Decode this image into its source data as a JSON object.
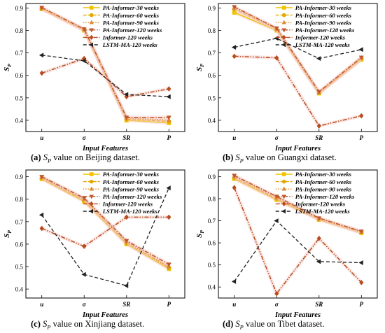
{
  "chart_data": [
    {
      "type": "line",
      "panel_label": "(a)",
      "caption_symbol": "S",
      "caption_subscript": "P",
      "caption_text": " value on Beijing dataset.",
      "xlabel": "Input Features",
      "ylabel_symbol": "S",
      "ylabel_subscript": "P",
      "categories": [
        "u",
        "σ",
        "SR",
        "P"
      ],
      "ylim": [
        0.35,
        0.92
      ],
      "yticks": [
        "0.4",
        "0.5",
        "0.6",
        "0.7",
        "0.8",
        "0.9"
      ],
      "legend_position": "top-right",
      "series": [
        {
          "name": "PA-Informer-30 weeks",
          "values": [
            0.895,
            0.8,
            0.4,
            0.388
          ],
          "color": "#f2c200",
          "marker": "square"
        },
        {
          "name": "PA-Informer-60 weeks",
          "values": [
            0.897,
            0.802,
            0.405,
            0.395
          ],
          "color": "#e0a800",
          "marker": "circle"
        },
        {
          "name": "PA-Informer-90 weeks",
          "values": [
            0.899,
            0.805,
            0.41,
            0.4
          ],
          "color": "#e08a2e",
          "marker": "triangle"
        },
        {
          "name": "PA-Informer-120 weeks",
          "values": [
            0.902,
            0.806,
            0.413,
            0.413
          ],
          "color": "#c0572a",
          "marker": "triangle-down"
        },
        {
          "name": "Informer-120 weeks",
          "values": [
            0.61,
            0.675,
            0.505,
            0.54
          ],
          "color": "#b84a1c",
          "marker": "diamond"
        },
        {
          "name": "LSTM-MA-120 weeks",
          "values": [
            0.69,
            0.665,
            0.515,
            0.505
          ],
          "color": "#222222",
          "marker": "triangle-left"
        }
      ]
    },
    {
      "type": "line",
      "panel_label": "(b)",
      "caption_symbol": "S",
      "caption_subscript": "P",
      "caption_text": " value on Guangxi dataset.",
      "xlabel": "Input Features",
      "ylabel_symbol": "S",
      "ylabel_subscript": "P",
      "categories": [
        "u",
        "σ",
        "SR",
        "P"
      ],
      "ylim": [
        0.35,
        0.92
      ],
      "yticks": [
        "0.4",
        "0.5",
        "0.6",
        "0.7",
        "0.8",
        "0.9"
      ],
      "legend_position": "top-right",
      "series": [
        {
          "name": "PA-Informer-30 weeks",
          "values": [
            0.88,
            0.8,
            0.52,
            0.67
          ],
          "color": "#f2c200",
          "marker": "square"
        },
        {
          "name": "PA-Informer-60 weeks",
          "values": [
            0.895,
            0.805,
            0.522,
            0.675
          ],
          "color": "#e0a800",
          "marker": "circle"
        },
        {
          "name": "PA-Informer-90 weeks",
          "values": [
            0.9,
            0.808,
            0.525,
            0.678
          ],
          "color": "#e08a2e",
          "marker": "triangle"
        },
        {
          "name": "PA-Informer-120 weeks",
          "values": [
            0.905,
            0.81,
            0.527,
            0.68
          ],
          "color": "#c0572a",
          "marker": "triangle-down"
        },
        {
          "name": "Informer-120 weeks",
          "values": [
            0.685,
            0.678,
            0.375,
            0.42
          ],
          "color": "#b84a1c",
          "marker": "diamond"
        },
        {
          "name": "LSTM-MA-120 weeks",
          "values": [
            0.725,
            0.765,
            0.675,
            0.715
          ],
          "color": "#222222",
          "marker": "triangle-left"
        }
      ]
    },
    {
      "type": "line",
      "panel_label": "(c)",
      "caption_symbol": "S",
      "caption_subscript": "P",
      "caption_text": " value on Xinjiang dataset.",
      "xlabel": "Input Features",
      "ylabel_symbol": "S",
      "ylabel_subscript": "P",
      "categories": [
        "u",
        "σ",
        "SR",
        "P"
      ],
      "ylim": [
        0.36,
        0.93
      ],
      "yticks": [
        "0.4",
        "0.5",
        "0.6",
        "0.7",
        "0.8",
        "0.9"
      ],
      "legend_position": "top-right",
      "series": [
        {
          "name": "PA-Informer-30 weeks",
          "values": [
            0.89,
            0.79,
            0.6,
            0.49
          ],
          "color": "#f2c200",
          "marker": "square"
        },
        {
          "name": "PA-Informer-60 weeks",
          "values": [
            0.893,
            0.795,
            0.605,
            0.495
          ],
          "color": "#e0a800",
          "marker": "circle"
        },
        {
          "name": "PA-Informer-90 weeks",
          "values": [
            0.897,
            0.8,
            0.61,
            0.5
          ],
          "color": "#e08a2e",
          "marker": "triangle"
        },
        {
          "name": "PA-Informer-120 weeks",
          "values": [
            0.9,
            0.805,
            0.615,
            0.51
          ],
          "color": "#c0572a",
          "marker": "triangle-down"
        },
        {
          "name": "Informer-120 weeks",
          "values": [
            0.67,
            0.59,
            0.72,
            0.72
          ],
          "color": "#b84a1c",
          "marker": "diamond"
        },
        {
          "name": "LSTM-MA-120 weeks",
          "values": [
            0.73,
            0.465,
            0.415,
            0.85
          ],
          "color": "#222222",
          "marker": "triangle-left"
        }
      ]
    },
    {
      "type": "line",
      "panel_label": "(d)",
      "caption_symbol": "S",
      "caption_subscript": "P",
      "caption_text": " value on Tibet dataset.",
      "xlabel": "Input Features",
      "ylabel_symbol": "S",
      "ylabel_subscript": "P",
      "categories": [
        "u",
        "σ",
        "SR",
        "P"
      ],
      "ylim": [
        0.35,
        0.93
      ],
      "yticks": [
        "0.4",
        "0.5",
        "0.6",
        "0.7",
        "0.8",
        "0.9"
      ],
      "legend_position": "top-right",
      "series": [
        {
          "name": "PA-Informer-30 weeks",
          "values": [
            0.89,
            0.795,
            0.705,
            0.645
          ],
          "color": "#f2c200",
          "marker": "square"
        },
        {
          "name": "PA-Informer-60 weeks",
          "values": [
            0.895,
            0.8,
            0.707,
            0.648
          ],
          "color": "#e0a800",
          "marker": "circle"
        },
        {
          "name": "PA-Informer-90 weeks",
          "values": [
            0.9,
            0.805,
            0.71,
            0.65
          ],
          "color": "#e08a2e",
          "marker": "triangle"
        },
        {
          "name": "PA-Informer-120 weeks",
          "values": [
            0.905,
            0.81,
            0.712,
            0.652
          ],
          "color": "#c0572a",
          "marker": "triangle-down"
        },
        {
          "name": "Informer-120 weeks",
          "values": [
            0.85,
            0.37,
            0.62,
            0.42
          ],
          "color": "#b84a1c",
          "marker": "diamond"
        },
        {
          "name": "LSTM-MA-120 weeks",
          "values": [
            0.425,
            0.7,
            0.515,
            0.51
          ],
          "color": "#222222",
          "marker": "triangle-left"
        }
      ]
    }
  ]
}
